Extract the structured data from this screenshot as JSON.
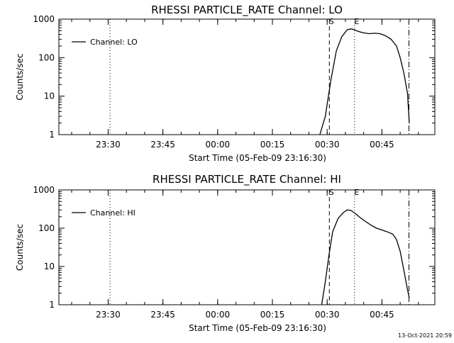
{
  "timestamp": "13-Oct-2021 20:59",
  "chart_data": [
    {
      "type": "line",
      "title": "RHESSI PARTICLE_RATE Channel: LO",
      "xlabel": "Start Time (05-Feb-09 23:16:30)",
      "ylabel": "Counts/sec",
      "yscale": "log",
      "ylim": [
        1,
        1000
      ],
      "y_ticks": [
        "1",
        "10",
        "100",
        "1000"
      ],
      "x_ticks": [
        "23:30",
        "23:45",
        "00:00",
        "00:15",
        "00:30",
        "00:45"
      ],
      "x_tick_minutes": [
        13.5,
        28.5,
        43.5,
        58.5,
        73.5,
        88.5
      ],
      "xlim_minutes": [
        0,
        103
      ],
      "legend": {
        "entries": [
          "Channel: LO"
        ],
        "position": "top-left"
      },
      "markers": [
        {
          "label": "",
          "x_minute": 14.0,
          "style": "dotted"
        },
        {
          "label": "S",
          "x_minute": 74.1,
          "style": "dashed"
        },
        {
          "label": "E",
          "x_minute": 81.0,
          "style": "dotted"
        },
        {
          "label": "",
          "x_minute": 95.9,
          "style": "dashdot"
        }
      ],
      "series": [
        {
          "name": "Channel: LO",
          "x": [
            71.5,
            73.0,
            74.5,
            76.0,
            77.5,
            79.0,
            80.0,
            81.0,
            82.0,
            83.5,
            85.0,
            86.5,
            88.0,
            89.5,
            91.0,
            92.5,
            93.5,
            94.5,
            95.5,
            96.0
          ],
          "y": [
            1,
            3,
            25,
            150,
            350,
            530,
            560,
            530,
            480,
            440,
            420,
            430,
            420,
            370,
            300,
            200,
            100,
            40,
            12,
            2
          ]
        }
      ]
    },
    {
      "type": "line",
      "title": "RHESSI PARTICLE_RATE Channel: HI",
      "xlabel": "Start Time (05-Feb-09 23:16:30)",
      "ylabel": "Counts/sec",
      "yscale": "log",
      "ylim": [
        1,
        1000
      ],
      "y_ticks": [
        "1",
        "10",
        "100",
        "1000"
      ],
      "x_ticks": [
        "23:30",
        "23:45",
        "00:00",
        "00:15",
        "00:30",
        "00:45"
      ],
      "x_tick_minutes": [
        13.5,
        28.5,
        43.5,
        58.5,
        73.5,
        88.5
      ],
      "xlim_minutes": [
        0,
        103
      ],
      "legend": {
        "entries": [
          "Channel: HI"
        ],
        "position": "top-left"
      },
      "markers": [
        {
          "label": "",
          "x_minute": 14.0,
          "style": "dotted"
        },
        {
          "label": "S",
          "x_minute": 74.1,
          "style": "dashed"
        },
        {
          "label": "E",
          "x_minute": 81.0,
          "style": "dotted"
        },
        {
          "label": "",
          "x_minute": 95.9,
          "style": "dashdot"
        }
      ],
      "series": [
        {
          "name": "Channel: HI",
          "x": [
            72.0,
            73.0,
            74.0,
            75.0,
            76.5,
            78.0,
            79.0,
            80.0,
            81.0,
            82.5,
            84.0,
            85.5,
            87.0,
            88.5,
            90.0,
            91.5,
            92.5,
            93.5,
            94.5,
            95.5,
            96.0
          ],
          "y": [
            1,
            4,
            20,
            80,
            180,
            260,
            300,
            290,
            250,
            190,
            150,
            120,
            100,
            90,
            80,
            70,
            50,
            25,
            8,
            2.5,
            1.5
          ]
        }
      ]
    }
  ]
}
